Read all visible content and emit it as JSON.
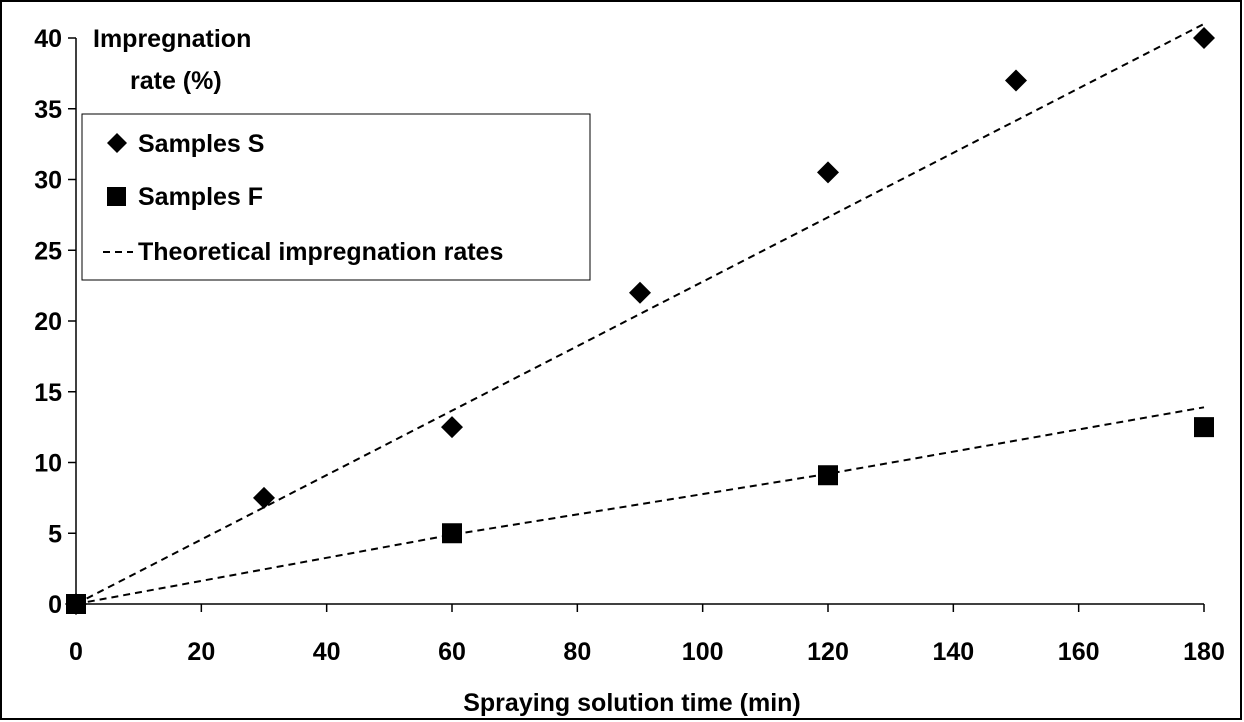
{
  "chart_data": {
    "type": "scatter",
    "title": "",
    "xlabel": "Spraying solution time (min)",
    "ylabel_lines": [
      "Impregnation",
      "rate (%)"
    ],
    "xlim": [
      0,
      180
    ],
    "ylim": [
      0,
      40
    ],
    "x_ticks": [
      0,
      20,
      40,
      60,
      80,
      100,
      120,
      140,
      160,
      180
    ],
    "y_ticks": [
      0,
      5,
      10,
      15,
      20,
      25,
      30,
      35,
      40
    ],
    "grid": false,
    "legend_position": "top-left",
    "series": [
      {
        "name": "Samples S",
        "marker": "diamond",
        "color": "#000000",
        "points": [
          [
            0,
            0
          ],
          [
            30,
            7.5
          ],
          [
            60,
            12.5
          ],
          [
            90,
            22
          ],
          [
            120,
            30.5
          ],
          [
            150,
            37
          ],
          [
            180,
            40
          ]
        ]
      },
      {
        "name": "Samples F",
        "marker": "square",
        "color": "#000000",
        "points": [
          [
            0,
            0
          ],
          [
            60,
            5
          ],
          [
            120,
            9.1
          ],
          [
            180,
            12.5
          ]
        ]
      }
    ],
    "trend_lines": {
      "name": "Theoretical impregnation rates",
      "style": "dashed",
      "color": "#000000",
      "lines": [
        [
          [
            0,
            0
          ],
          [
            180,
            41
          ]
        ],
        [
          [
            0,
            0
          ],
          [
            60,
            4.9
          ],
          [
            120,
            9.2
          ],
          [
            180,
            13.9
          ]
        ]
      ]
    }
  }
}
